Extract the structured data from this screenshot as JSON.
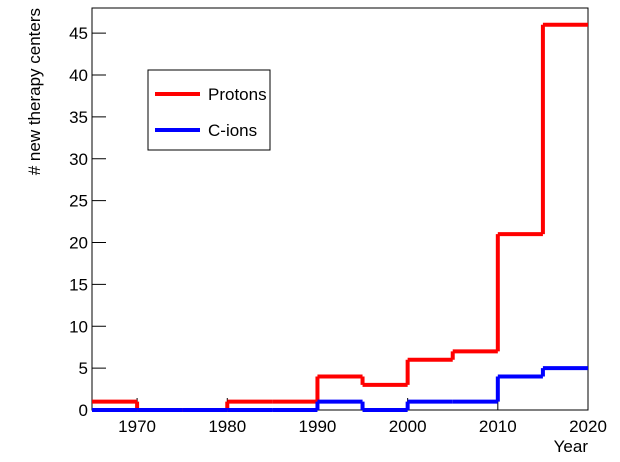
{
  "chart_data": {
    "type": "histogram",
    "x_label": "Year",
    "y_label": "# new therapy centers",
    "bins": [
      1965,
      1970,
      1975,
      1980,
      1985,
      1990,
      1995,
      2000,
      2005,
      2010,
      2015,
      2020
    ],
    "series": [
      {
        "name": "Protons",
        "color": "#ff0000",
        "values": [
          1,
          0,
          0,
          1,
          1,
          4,
          3,
          6,
          7,
          21,
          46
        ]
      },
      {
        "name": "C-ions",
        "color": "#0000ff",
        "values": [
          0,
          0,
          0,
          0,
          0,
          1,
          0,
          1,
          1,
          4,
          5
        ]
      }
    ],
    "xlim": [
      1965,
      2020
    ],
    "xticks": [
      1970,
      1980,
      1990,
      2000,
      2010,
      2020
    ],
    "ylim": [
      0,
      48
    ],
    "yticks": [
      0,
      5,
      10,
      15,
      20,
      25,
      30,
      35,
      40,
      45
    ]
  }
}
